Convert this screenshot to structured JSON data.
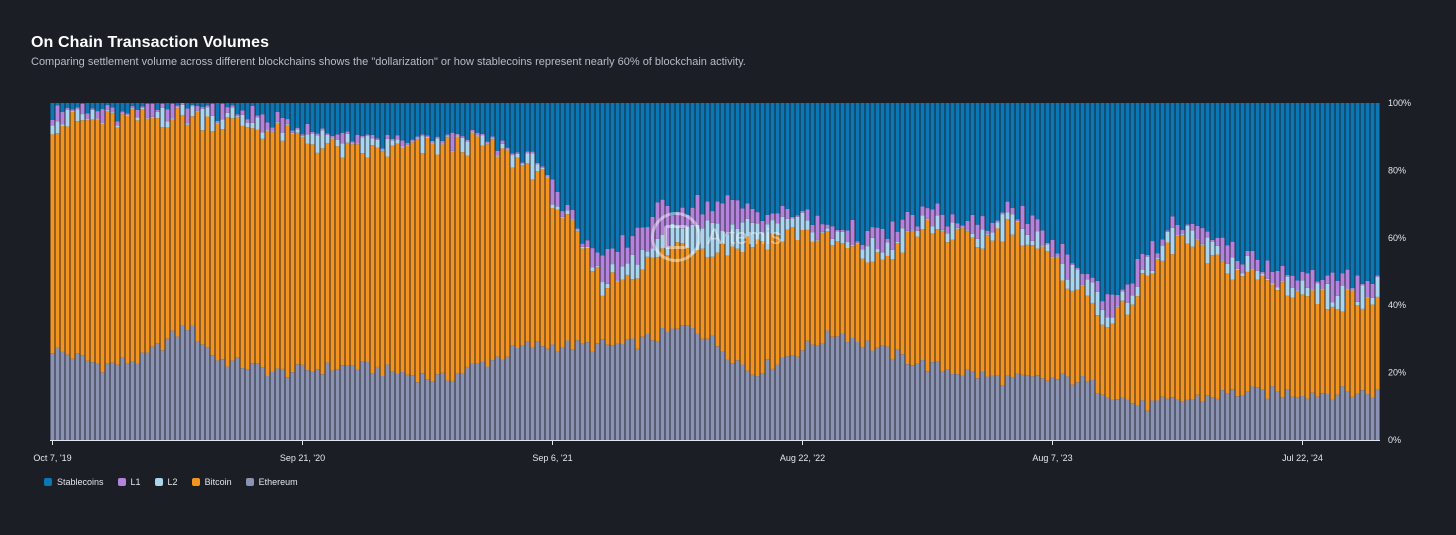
{
  "header": {
    "title": "On Chain Transaction Volumes",
    "subtitle": "Comparing settlement volume across different blockchains shows the \"dollarization\" or how stablecoins represent nearly 60% of blockchain activity."
  },
  "watermark": {
    "text": "Artemis"
  },
  "chart_data": {
    "type": "bar",
    "stacked": true,
    "normalized": true,
    "title": "On Chain Transaction Volumes",
    "ylim": [
      0,
      100
    ],
    "y_ticks": [
      "0%",
      "20%",
      "40%",
      "60%",
      "80%",
      "100%"
    ],
    "x_tick_labels": [
      "Oct 7, '19",
      "Sep 21, '20",
      "Sep 6, '21",
      "Aug 22, '22",
      "Aug 7, '23",
      "Jul 22, '24"
    ],
    "legend_position": "bottom-left",
    "grid": false,
    "series": [
      {
        "name": "Ethereum",
        "color": "#8b93b3"
      },
      {
        "name": "Bitcoin",
        "color": "#f2941f"
      },
      {
        "name": "L2",
        "color": "#a9d5ee"
      },
      {
        "name": "L1",
        "color": "#b483dd"
      },
      {
        "name": "Stablecoins",
        "color": "#0b78b5"
      }
    ],
    "legend_order": [
      "Stablecoins",
      "L1",
      "L2",
      "Bitcoin",
      "Ethereum"
    ],
    "weeks": 266,
    "cumulative_keypoints": {
      "ethereum_top": [
        [
          0,
          27
        ],
        [
          10,
          22
        ],
        [
          18,
          24
        ],
        [
          27,
          34
        ],
        [
          33,
          24
        ],
        [
          45,
          20
        ],
        [
          60,
          22
        ],
        [
          78,
          18
        ],
        [
          95,
          28
        ],
        [
          115,
          28
        ],
        [
          128,
          34
        ],
        [
          140,
          20
        ],
        [
          157,
          32
        ],
        [
          167,
          26
        ],
        [
          175,
          22
        ],
        [
          190,
          18
        ],
        [
          205,
          18
        ],
        [
          218,
          10
        ],
        [
          236,
          14
        ],
        [
          250,
          14
        ],
        [
          262,
          14
        ],
        [
          265,
          14
        ]
      ],
      "bitcoin_top": [
        [
          0,
          94
        ],
        [
          15,
          95
        ],
        [
          27,
          96
        ],
        [
          40,
          93
        ],
        [
          60,
          85
        ],
        [
          70,
          86
        ],
        [
          85,
          88
        ],
        [
          97,
          80
        ],
        [
          110,
          46
        ],
        [
          120,
          53
        ],
        [
          125,
          58
        ],
        [
          135,
          57
        ],
        [
          150,
          62
        ],
        [
          165,
          53
        ],
        [
          175,
          63
        ],
        [
          185,
          58
        ],
        [
          192,
          64
        ],
        [
          205,
          45
        ],
        [
          212,
          34
        ],
        [
          225,
          60
        ],
        [
          233,
          52
        ],
        [
          245,
          46
        ],
        [
          255,
          41
        ],
        [
          265,
          43
        ]
      ],
      "l2_top": [
        [
          0,
          95
        ],
        [
          15,
          96
        ],
        [
          27,
          97
        ],
        [
          40,
          95
        ],
        [
          60,
          87
        ],
        [
          70,
          87
        ],
        [
          85,
          88
        ],
        [
          97,
          81
        ],
        [
          110,
          47
        ],
        [
          120,
          58
        ],
        [
          125,
          62
        ],
        [
          135,
          62
        ],
        [
          150,
          64
        ],
        [
          165,
          56
        ],
        [
          175,
          65
        ],
        [
          185,
          60
        ],
        [
          192,
          66
        ],
        [
          205,
          48
        ],
        [
          212,
          38
        ],
        [
          225,
          62
        ],
        [
          233,
          55
        ],
        [
          245,
          48
        ],
        [
          255,
          43
        ],
        [
          265,
          45
        ]
      ],
      "l1_top": [
        [
          0,
          97
        ],
        [
          15,
          98
        ],
        [
          27,
          99
        ],
        [
          40,
          97
        ],
        [
          60,
          88
        ],
        [
          70,
          88
        ],
        [
          85,
          89
        ],
        [
          97,
          82
        ],
        [
          110,
          52
        ],
        [
          120,
          67
        ],
        [
          125,
          70
        ],
        [
          135,
          70
        ],
        [
          150,
          66
        ],
        [
          165,
          60
        ],
        [
          175,
          68
        ],
        [
          185,
          63
        ],
        [
          192,
          69
        ],
        [
          205,
          51
        ],
        [
          212,
          42
        ],
        [
          225,
          65
        ],
        [
          233,
          58
        ],
        [
          245,
          51
        ],
        [
          255,
          47
        ],
        [
          265,
          48
        ]
      ]
    }
  }
}
